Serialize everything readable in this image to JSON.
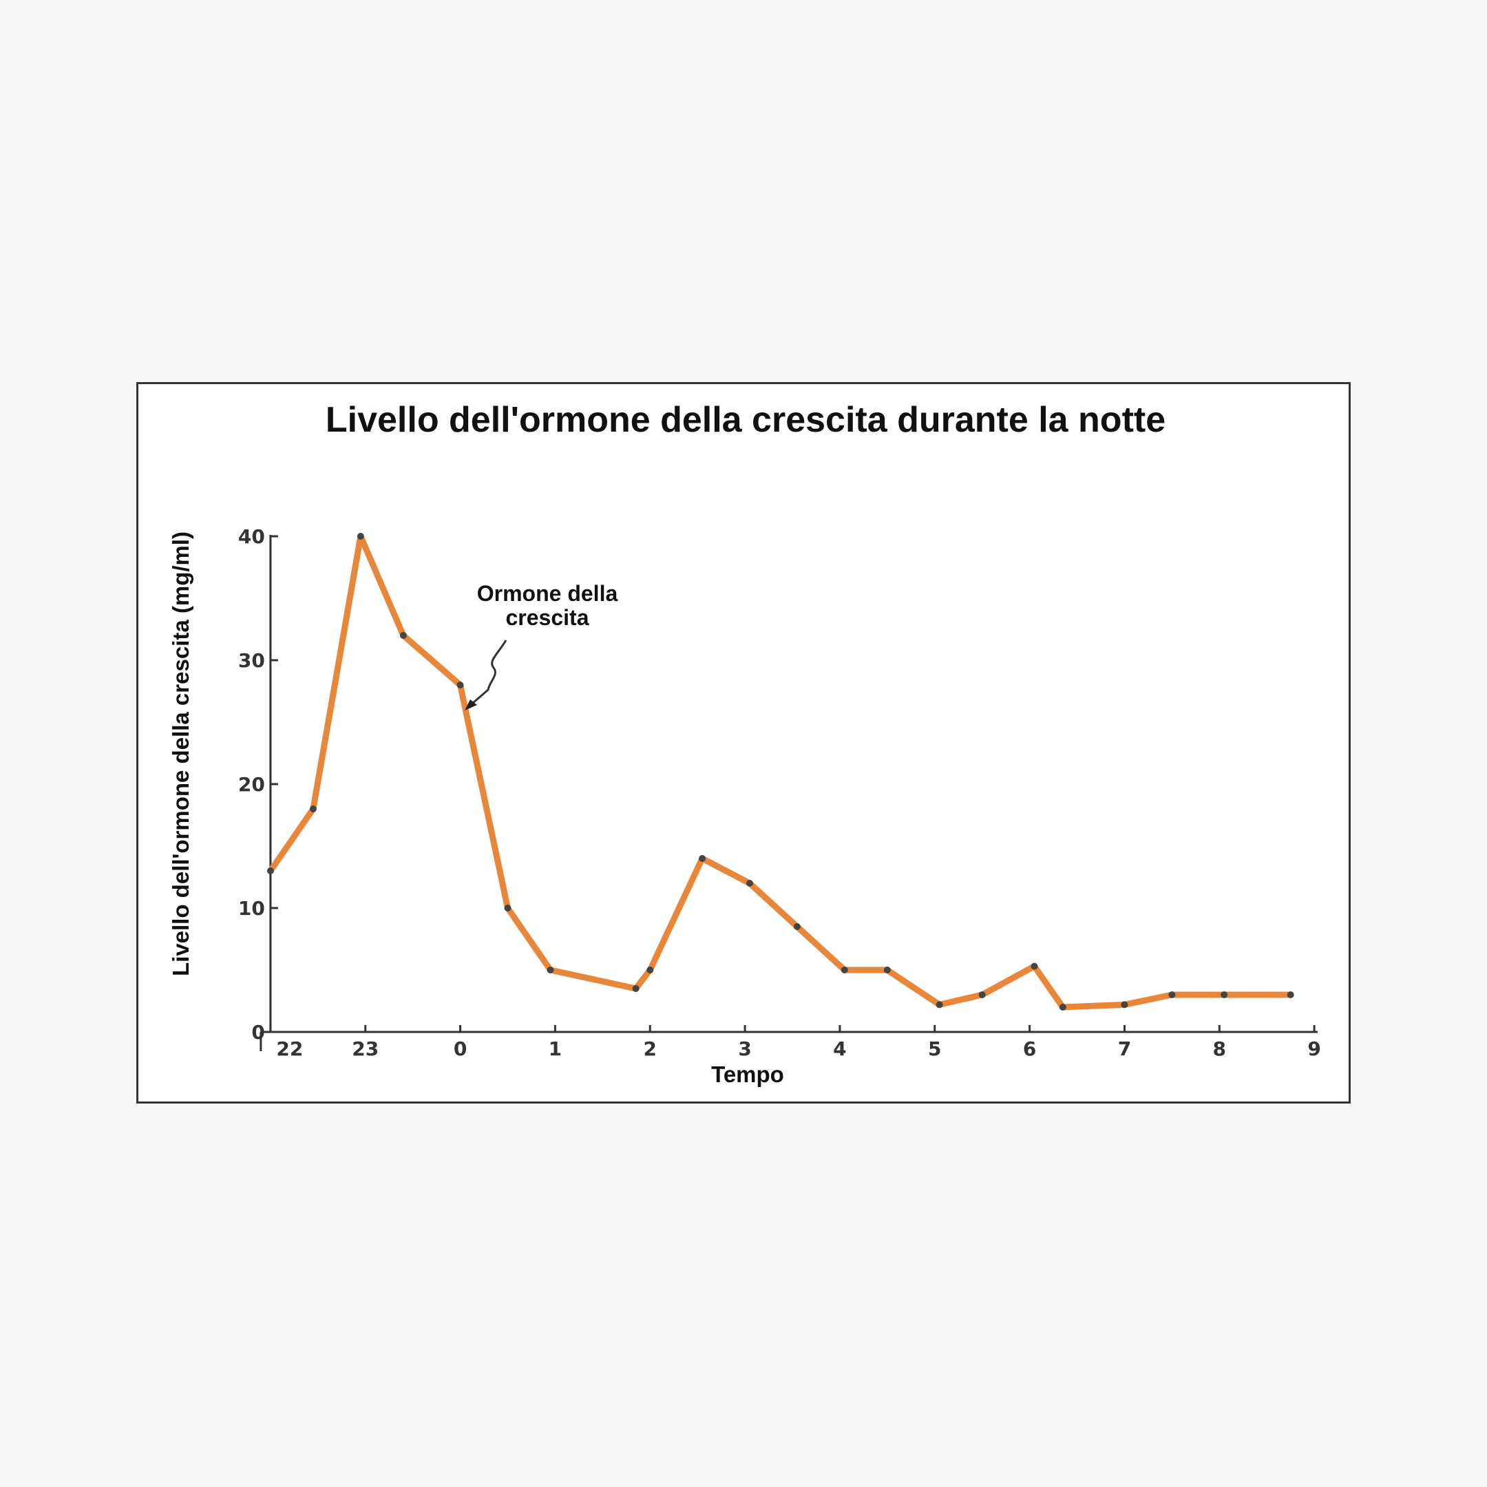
{
  "chart_data": {
    "type": "line",
    "title": "Livello dell'ormone della crescita durante la notte",
    "xlabel": "Tempo",
    "ylabel": "Livello dell'ormone della crescita (mg/ml)",
    "x_ticks": [
      "22",
      "23",
      "0",
      "1",
      "2",
      "3",
      "4",
      "5",
      "6",
      "7",
      "8",
      "9"
    ],
    "y_ticks": [
      0,
      10,
      20,
      30,
      40
    ],
    "xlim": [
      -0.05,
      11.05
    ],
    "ylim": [
      0,
      40
    ],
    "grid": false,
    "annotation": {
      "lines": [
        "Ormone della",
        "crescita"
      ],
      "points_to_x": 2.1,
      "points_to_y": 25.5
    },
    "series": [
      {
        "color": "#e8873a",
        "x": [
          0,
          0.45,
          0.95,
          1.4,
          2.0,
          2.5,
          2.95,
          3.85,
          4.0,
          4.55,
          5.05,
          5.55,
          6.05,
          6.5,
          7.05,
          7.5,
          8.05,
          8.35,
          9.0,
          9.5,
          10.05,
          10.75
        ],
        "y": [
          13,
          18,
          40,
          32,
          28,
          10,
          5,
          3.5,
          5,
          14,
          12,
          8.5,
          5,
          5,
          2.2,
          3,
          5.3,
          2,
          2.2,
          3,
          3,
          3
        ]
      }
    ],
    "colors": {
      "line": "#e8873a",
      "axis": "#333333",
      "frame": "#333333"
    }
  }
}
